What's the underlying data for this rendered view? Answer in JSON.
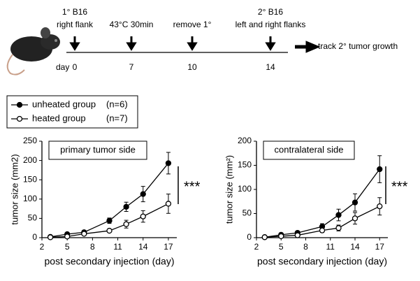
{
  "timeline": {
    "events": [
      {
        "lines": [
          "1° B16",
          "right flank"
        ],
        "day": "0"
      },
      {
        "lines": [
          "43°C 30min"
        ],
        "day": "7"
      },
      {
        "lines": [
          "remove 1°"
        ],
        "day": "10"
      },
      {
        "lines": [
          "2° B16",
          "left and right flanks"
        ],
        "day": "14"
      }
    ],
    "day_label": "day",
    "end_label": "track 2° tumor growth"
  },
  "legend": {
    "n_labels": [
      "(n=6)",
      "(n=7)"
    ]
  },
  "chart_data": [
    {
      "type": "line",
      "title": "primary tumor side",
      "x_label": "post secondary injection (day)",
      "y_label": "tumor size (mm2)",
      "x": [
        3,
        5,
        7,
        10,
        12,
        14,
        17
      ],
      "xlim": [
        2,
        18
      ],
      "xticks": [
        2,
        5,
        8,
        11,
        14,
        17
      ],
      "ylim": [
        0,
        250
      ],
      "yticks": [
        0,
        50,
        100,
        150,
        200,
        250
      ],
      "annotation": "***",
      "series": [
        {
          "name": "unheated group",
          "color": "#000000",
          "marker": "filled",
          "values": [
            2,
            9,
            14,
            44,
            80,
            113,
            193
          ],
          "errors": [
            2,
            3,
            3,
            7,
            12,
            20,
            28
          ]
        },
        {
          "name": "heated group",
          "color": "#000000",
          "marker": "open",
          "values": [
            1,
            3,
            10,
            18,
            35,
            55,
            88
          ],
          "errors": [
            1,
            2,
            2,
            4,
            10,
            15,
            25
          ]
        }
      ]
    },
    {
      "type": "line",
      "title": "contralateral side",
      "x_label": "post secondary injection (day)",
      "y_label": "tumor size (mm²)",
      "x": [
        3,
        5,
        7,
        10,
        12,
        14,
        17
      ],
      "xlim": [
        2,
        18
      ],
      "xticks": [
        2,
        5,
        8,
        11,
        14,
        17
      ],
      "ylim": [
        0,
        200
      ],
      "yticks": [
        0,
        50,
        100,
        150,
        200
      ],
      "annotation": "***",
      "series": [
        {
          "name": "unheated group",
          "color": "#000000",
          "marker": "filled",
          "values": [
            1,
            6,
            10,
            23,
            47,
            73,
            142
          ],
          "errors": [
            1,
            2,
            3,
            6,
            12,
            18,
            28
          ]
        },
        {
          "name": "heated group",
          "color": "#000000",
          "marker": "open",
          "values": [
            1,
            3,
            5,
            15,
            20,
            40,
            65
          ],
          "errors": [
            1,
            2,
            2,
            4,
            6,
            12,
            18
          ]
        }
      ]
    }
  ]
}
